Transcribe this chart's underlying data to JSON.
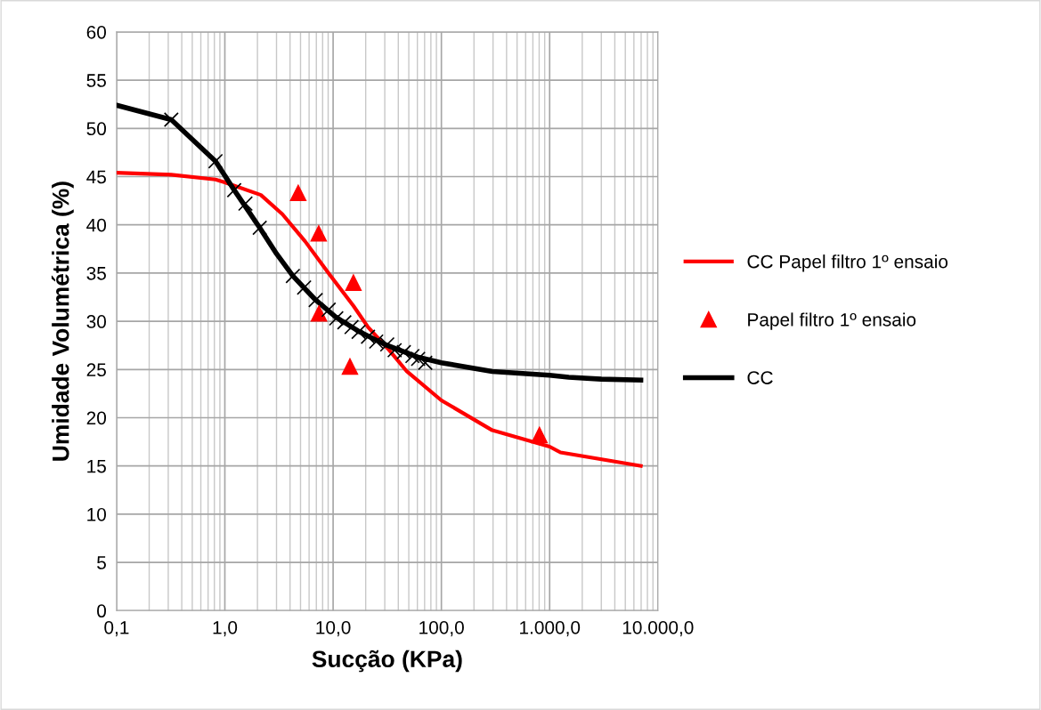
{
  "chart_data": {
    "type": "line",
    "xlabel": "Sucção (KPa)",
    "ylabel": "Umidade Volumétrica (%)",
    "log": "x",
    "xlim": [
      0.1,
      10000
    ],
    "xticks": [
      {
        "value": 0.1,
        "label": "0,1"
      },
      {
        "value": 1,
        "label": "1,0"
      },
      {
        "value": 10,
        "label": "10,0"
      },
      {
        "value": 100,
        "label": "100,0"
      },
      {
        "value": 1000,
        "label": "1.000,0"
      },
      {
        "value": 10000,
        "label": "10.000,0"
      }
    ],
    "ylim": [
      0,
      60
    ],
    "yticks": [
      0,
      5,
      10,
      15,
      20,
      25,
      30,
      35,
      40,
      45,
      50,
      55,
      60
    ],
    "grid": true,
    "legend": "right",
    "series": [
      {
        "name": "CC Papel filtro 1º ensaio",
        "color": "#ff0000",
        "marker": "none",
        "x": [
          0.1,
          0.32,
          0.82,
          1.0,
          2.15,
          3.4,
          5.5,
          9.2,
          15.4,
          21,
          33,
          48,
          100,
          295,
          1000,
          1260,
          6950
        ],
        "values": [
          45.4,
          45.2,
          44.7,
          44.4,
          43.1,
          41.1,
          38.3,
          34.9,
          31.6,
          29.4,
          27.0,
          24.8,
          21.8,
          18.7,
          17.0,
          16.4,
          15.0
        ]
      },
      {
        "name": "Papel filtro 1º ensaio",
        "type": "scatter",
        "color": "#ff0000",
        "marker": "triangle",
        "x": [
          4.76,
          7.36,
          15.4,
          7.4,
          14.3,
          805
        ],
        "values": [
          43.3,
          39.1,
          34.0,
          30.8,
          25.3,
          18.2
        ]
      },
      {
        "type": "scatter",
        "color": "#000000",
        "marker": "cross",
        "x": [
          0.32,
          0.82,
          1.22,
          1.55,
          2.1,
          4.25,
          5.4,
          6.9,
          9.1,
          10.7,
          12.7,
          14.8,
          17.2,
          21,
          25,
          31.6,
          37,
          45,
          54,
          61,
          71
        ],
        "values": [
          50.9,
          46.6,
          43.6,
          42.2,
          39.7,
          34.7,
          33.5,
          32.2,
          31.2,
          30.3,
          29.9,
          29.4,
          28.9,
          28.4,
          27.9,
          27.6,
          27.0,
          26.8,
          26.4,
          26.1,
          25.7
        ]
      },
      {
        "name": "CC",
        "color": "#000000",
        "marker": "none",
        "x": [
          0.1,
          0.32,
          0.82,
          1.22,
          2.1,
          3.0,
          4.25,
          6.9,
          10.7,
          17,
          30,
          60,
          100,
          295,
          1000,
          1500,
          3000,
          6950
        ],
        "values": [
          52.4,
          50.9,
          46.6,
          43.6,
          39.7,
          37.0,
          34.7,
          32.2,
          30.4,
          29.0,
          27.6,
          26.3,
          25.7,
          24.8,
          24.4,
          24.2,
          24.0,
          23.9
        ]
      }
    ]
  }
}
